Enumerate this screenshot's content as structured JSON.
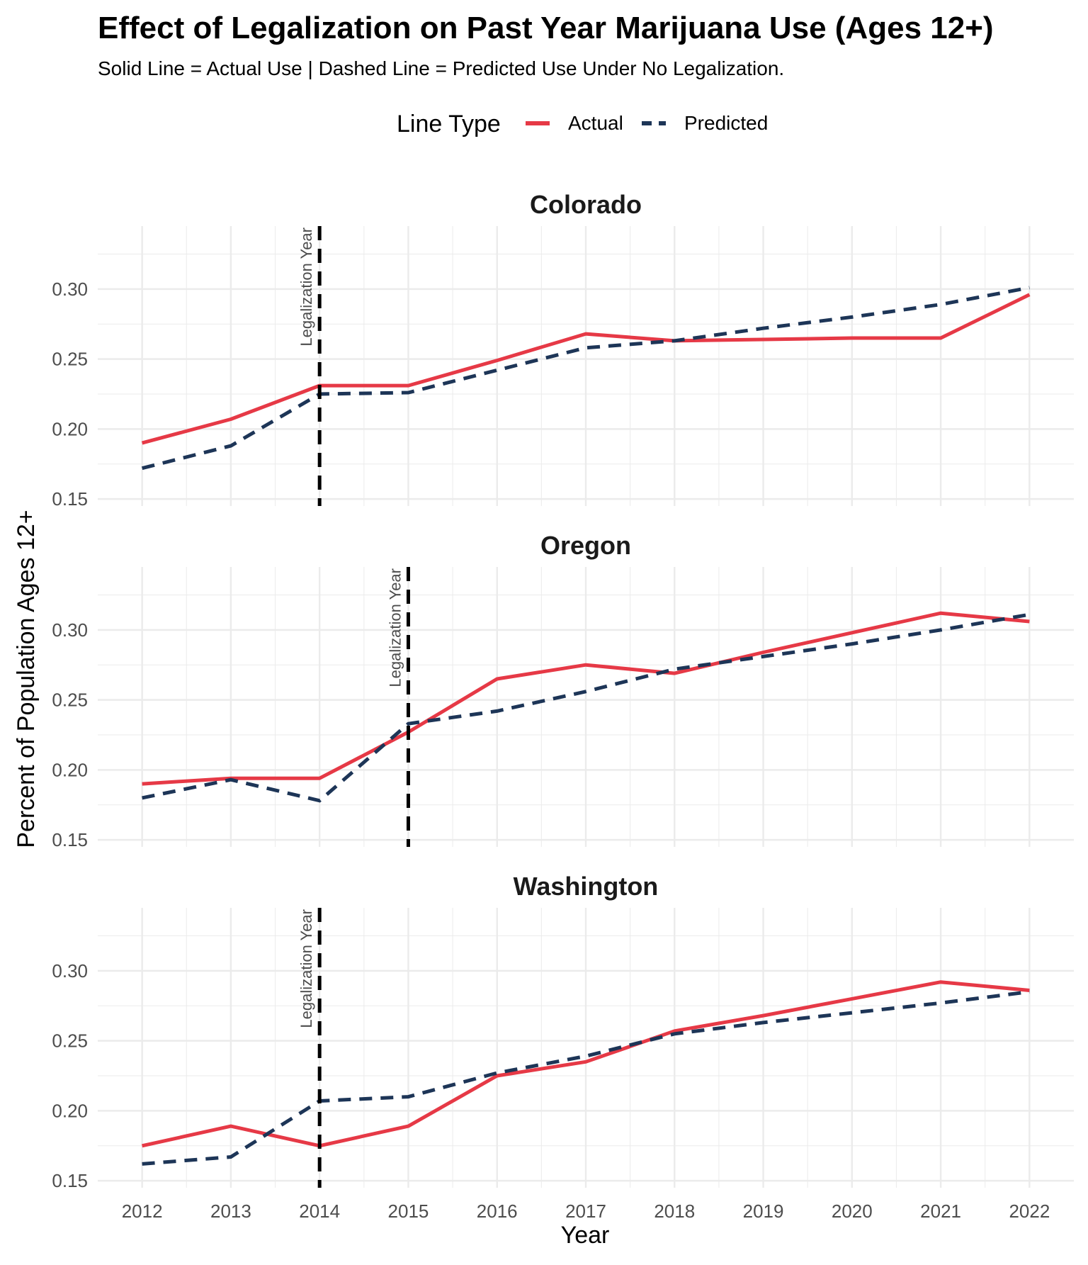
{
  "title": "Effect of Legalization on Past Year Marijuana Use (Ages 12+)",
  "subtitle": "Solid Line = Actual Use | Dashed Line = Predicted Use Under No Legalization.",
  "legend": {
    "title": "Line Type",
    "items": [
      {
        "label": "Actual",
        "color": "#e63946",
        "style": "solid"
      },
      {
        "label": "Predicted",
        "color": "#1d3557",
        "style": "dashed"
      }
    ]
  },
  "xlabel": "Year",
  "ylabel": "Percent of Population Ages 12+",
  "annotation_label": "Legalization Year",
  "colors": {
    "actual": "#e63946",
    "predicted": "#1d3557",
    "vline": "#000000",
    "grid": "#ebebeb"
  },
  "chart_data": {
    "type": "line",
    "x": [
      2012,
      2013,
      2014,
      2015,
      2016,
      2017,
      2018,
      2019,
      2020,
      2021,
      2022
    ],
    "xlim": [
      2011.5,
      2022.5
    ],
    "ylim": [
      0.145,
      0.345
    ],
    "yticks": [
      "0.15",
      "0.20",
      "0.25",
      "0.30"
    ],
    "ytick_values": [
      0.15,
      0.2,
      0.25,
      0.3
    ],
    "grid": true,
    "legend_position": "top",
    "panels": [
      {
        "name": "Colorado",
        "legalization_year": 2014,
        "series": [
          {
            "name": "Actual",
            "values": [
              0.19,
              0.207,
              0.231,
              0.231,
              0.249,
              0.268,
              0.263,
              0.264,
              0.265,
              0.265,
              0.296
            ]
          },
          {
            "name": "Predicted",
            "values": [
              0.172,
              0.188,
              0.225,
              0.226,
              0.242,
              0.258,
              0.263,
              0.272,
              0.28,
              0.289,
              0.301
            ]
          }
        ]
      },
      {
        "name": "Oregon",
        "legalization_year": 2015,
        "series": [
          {
            "name": "Actual",
            "values": [
              0.19,
              0.194,
              0.194,
              0.227,
              0.265,
              0.275,
              0.269,
              0.284,
              0.298,
              0.312,
              0.306
            ]
          },
          {
            "name": "Predicted",
            "values": [
              0.18,
              0.193,
              0.178,
              0.233,
              0.242,
              0.256,
              0.272,
              0.281,
              0.29,
              0.3,
              0.311
            ]
          }
        ]
      },
      {
        "name": "Washington",
        "legalization_year": 2014,
        "series": [
          {
            "name": "Actual",
            "values": [
              0.175,
              0.189,
              0.175,
              0.189,
              0.225,
              0.235,
              0.257,
              0.268,
              0.28,
              0.292,
              0.286
            ]
          },
          {
            "name": "Predicted",
            "values": [
              0.162,
              0.167,
              0.207,
              0.21,
              0.227,
              0.239,
              0.255,
              0.263,
              0.27,
              0.277,
              0.285
            ]
          }
        ]
      }
    ]
  }
}
